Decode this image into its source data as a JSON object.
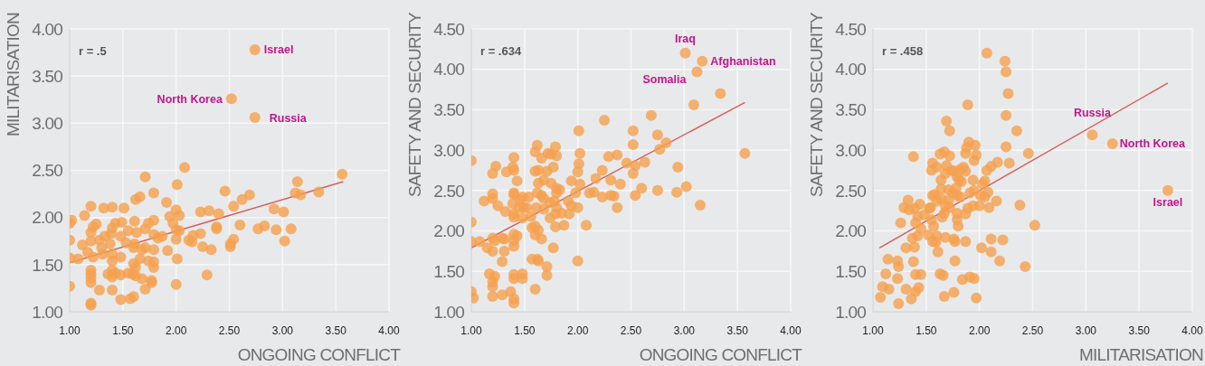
{
  "chart_data": [
    {
      "type": "scatter",
      "xlabel": "ONGOING CONFLICT",
      "ylabel": "MILITARISATION",
      "xlim": [
        1,
        4
      ],
      "xticks": [
        {
          "value": 1,
          "label": "1.00"
        },
        {
          "value": 1.5,
          "label": "1.50"
        },
        {
          "value": 2,
          "label": "2.00"
        },
        {
          "value": 2.5,
          "label": "2.50"
        },
        {
          "value": 3,
          "label": "3.00"
        },
        {
          "value": 3.5,
          "label": "3.50"
        },
        {
          "value": 4,
          "label": "4.00"
        }
      ],
      "ylim": [
        1,
        4
      ],
      "yticks": [
        {
          "value": 1,
          "label": "1.00"
        },
        {
          "value": 1.5,
          "label": "1.50"
        },
        {
          "value": 2,
          "label": "2.00"
        },
        {
          "value": 2.5,
          "label": "2.50"
        },
        {
          "value": 3,
          "label": "3.00"
        },
        {
          "value": 3.5,
          "label": "3.50"
        },
        {
          "value": 4,
          "label": "4.00"
        }
      ],
      "grid": true,
      "marker": "circle",
      "annotations": [
        "r = .5",
        {
          "text": "Israel",
          "x": 2.74,
          "y": 3.78
        },
        {
          "text": "North Korea",
          "x": 2.52,
          "y": 3.26
        },
        {
          "text": "Russia",
          "x": 2.74,
          "y": 3.06
        }
      ],
      "series": [
        {
          "color": "#f5a04e",
          "x": [
            2.74,
            2.52,
            2.74,
            2.08,
            3.56,
            1.71,
            2.01,
            3.14,
            2.46,
            2.69,
            2.62,
            3.12,
            3.17,
            3.34,
            1.79,
            1.66,
            1.62,
            1.91,
            2.54,
            2.92,
            3.01,
            2.23,
            2.31,
            2.4,
            2.0,
            2.03,
            1.94,
            1.97,
            1.51,
            1.4,
            1.32,
            1.2,
            1.14,
            1.02,
            1.0,
            1.25,
            1.22,
            1.43,
            1.49,
            1.61,
            1.79,
            1.74,
            1.71,
            1.4,
            1.2,
            2.6,
            2.77,
            2.83,
            2.94,
            3.08,
            2.38,
            2.38,
            2.0,
            2.03,
            2.23,
            2.16,
            2.12,
            2.15,
            2.54,
            2.51,
            2.51,
            2.25,
            2.33,
            3.02,
            2.0,
            1.87,
            1.83,
            1.79,
            1.63,
            1.55,
            1.48,
            1.39,
            1.33,
            1.28,
            1.0,
            1.12,
            1.2,
            1.3,
            1.38,
            1.53,
            1.61,
            1.6,
            1.68,
            1.71,
            1.79,
            1.92,
            1.17,
            1.31,
            1.22,
            1.4,
            1.48,
            1.66,
            1.74,
            1.79,
            2.01,
            1.0,
            1.08,
            1.4,
            1.6,
            1.62,
            1.79,
            1.2,
            1.2,
            1.4,
            1.36,
            1.43,
            1.48,
            1.55,
            1.59,
            1.62,
            1.4,
            1.2,
            1.2,
            1.68,
            1.77,
            1.77,
            2.29,
            2.0,
            1.0,
            1.28,
            1.4,
            1.71,
            1.48,
            1.57,
            1.6,
            1.2,
            1.2
          ],
          "values": [
            3.78,
            3.26,
            3.06,
            2.53,
            2.46,
            2.43,
            2.35,
            2.38,
            2.28,
            2.24,
            2.19,
            2.26,
            2.24,
            2.27,
            2.26,
            2.22,
            2.19,
            2.16,
            2.12,
            2.09,
            2.06,
            2.06,
            2.07,
            2.04,
            2.08,
            2.02,
            2.01,
            1.94,
            2.1,
            2.11,
            2.1,
            2.12,
            2.02,
            1.97,
            1.94,
            1.93,
            1.9,
            1.94,
            1.95,
            1.96,
            1.97,
            1.94,
            1.88,
            1.89,
            1.84,
            1.92,
            1.88,
            1.91,
            1.87,
            1.88,
            1.88,
            1.9,
            1.87,
            1.86,
            1.83,
            1.81,
            1.76,
            1.74,
            1.77,
            1.72,
            1.69,
            1.69,
            1.66,
            1.75,
            1.77,
            1.8,
            1.78,
            1.82,
            1.84,
            1.86,
            1.8,
            1.83,
            1.8,
            1.76,
            1.76,
            1.71,
            1.75,
            1.68,
            1.72,
            1.73,
            1.72,
            1.68,
            1.66,
            1.68,
            1.66,
            1.65,
            1.63,
            1.61,
            1.58,
            1.61,
            1.58,
            1.56,
            1.54,
            1.53,
            1.56,
            1.57,
            1.56,
            1.54,
            1.51,
            1.47,
            1.47,
            1.44,
            1.4,
            1.44,
            1.4,
            1.41,
            1.39,
            1.41,
            1.4,
            1.38,
            1.37,
            1.36,
            1.31,
            1.35,
            1.33,
            1.31,
            1.39,
            1.29,
            1.27,
            1.23,
            1.23,
            1.24,
            1.13,
            1.14,
            1.16,
            1.09,
            1.07
          ]
        },
        {
          "type": "line",
          "color": "#d4605c",
          "marker": "none",
          "x": [
            1.0,
            3.57
          ],
          "values": [
            1.52,
            2.38
          ]
        }
      ]
    },
    {
      "type": "scatter",
      "xlabel": "ONGOING CONFLICT",
      "ylabel": "SAFETY AND SECURITY",
      "xlim": [
        1,
        4
      ],
      "xticks": [
        {
          "value": 1,
          "label": "1.00"
        },
        {
          "value": 1.5,
          "label": "1.50"
        },
        {
          "value": 2,
          "label": "2.00"
        },
        {
          "value": 2.5,
          "label": "2.50"
        },
        {
          "value": 3,
          "label": "3.00"
        },
        {
          "value": 3.5,
          "label": "3.50"
        },
        {
          "value": 4,
          "label": "4.00"
        }
      ],
      "ylim": [
        1,
        4.5
      ],
      "yticks": [
        {
          "value": 1,
          "label": "1.00"
        },
        {
          "value": 1.5,
          "label": "1.50"
        },
        {
          "value": 2,
          "label": "2.00"
        },
        {
          "value": 2.5,
          "label": "2.50"
        },
        {
          "value": 3,
          "label": "3.00"
        },
        {
          "value": 3.5,
          "label": "3.50"
        },
        {
          "value": 4,
          "label": "4.00"
        },
        {
          "value": 4.5,
          "label": "4.50"
        }
      ],
      "grid": true,
      "marker": "circle",
      "annotations": [
        "r = .634",
        {
          "text": "Iraq",
          "x": 3.01,
          "y": 4.2
        },
        {
          "text": "Afghanistan",
          "x": 3.17,
          "y": 4.1
        },
        {
          "text": "Somalia",
          "x": 3.12,
          "y": 3.97
        }
      ],
      "series": [
        {
          "color": "#f5a04e",
          "x": [
            3.01,
            3.17,
            3.12,
            3.34,
            3.09,
            2.69,
            2.25,
            2.01,
            2.52,
            2.75,
            2.83,
            2.52,
            2.77,
            3.57,
            2.02,
            2.29,
            2.37,
            2.63,
            2.46,
            2.54,
            2.94,
            2.23,
            2.52,
            2.01,
            2.0,
            2.02,
            1.94,
            2.17,
            2.31,
            2.4,
            2.6,
            2.75,
            2.93,
            3.02,
            2.54,
            2.31,
            2.34,
            2.23,
            2.11,
            2.15,
            1.98,
            2.37,
            3.15,
            2.08,
            2.0,
            1.91,
            1.94,
            1.92,
            1.85,
            1.87,
            1.79,
            1.8,
            1.83,
            1.8,
            1.78,
            1.8,
            1.79,
            1.74,
            1.77,
            1.66,
            1.6,
            1.63,
            1.6,
            1.57,
            1.56,
            1.61,
            1.68,
            1.74,
            1.68,
            1.66,
            1.62,
            1.68,
            1.63,
            1.75,
            1.71,
            1.6,
            1.63,
            1.77,
            1.66,
            1.6,
            1.62,
            1.72,
            1.75,
            1.79,
            1.8,
            1.4,
            1.39,
            1.4,
            1.43,
            1.33,
            1.23,
            1.2,
            1.0,
            1.12,
            1.2,
            1.2,
            1.25,
            1.32,
            1.4,
            1.4,
            1.39,
            1.46,
            1.48,
            1.54,
            1.49,
            1.52,
            1.45,
            1.4,
            1.4,
            1.48,
            1.0,
            1.0,
            1.08,
            1.15,
            1.2,
            1.22,
            1.29,
            1.31,
            1.2,
            1.31,
            1.29,
            1.4,
            1.43,
            1.4,
            1.4,
            1.57,
            1.62,
            1.63,
            1.71,
            1.71,
            2.0,
            1.17,
            1.22,
            1.2,
            1.4,
            1.4,
            1.48,
            1.48,
            1.2,
            1.2,
            1.29,
            1.0,
            1.02,
            1.37,
            1.4,
            1.4,
            1.6
          ],
          "values": [
            4.2,
            4.1,
            3.97,
            3.7,
            3.56,
            3.43,
            3.37,
            3.24,
            3.24,
            3.19,
            3.09,
            3.07,
            3.01,
            2.96,
            2.96,
            2.92,
            2.94,
            2.85,
            2.84,
            2.81,
            2.79,
            2.75,
            2.71,
            2.83,
            2.73,
            2.58,
            2.62,
            2.65,
            2.63,
            2.58,
            2.53,
            2.5,
            2.48,
            2.55,
            2.44,
            2.44,
            2.43,
            2.42,
            2.47,
            2.48,
            2.47,
            2.29,
            2.32,
            2.07,
            2.29,
            2.37,
            2.31,
            2.21,
            2.22,
            2.07,
            2.05,
            2.53,
            2.51,
            2.47,
            2.37,
            2.29,
            2.21,
            2.16,
            1.79,
            1.9,
            2.06,
            2.01,
            1.95,
            2.04,
            2.18,
            2.29,
            2.27,
            2.35,
            2.4,
            2.44,
            2.47,
            2.63,
            2.59,
            2.59,
            2.74,
            2.74,
            2.75,
            2.79,
            2.9,
            2.98,
            3.06,
            2.96,
            2.95,
            3.04,
            2.93,
            2.91,
            2.79,
            2.75,
            2.62,
            2.73,
            2.8,
            2.71,
            2.87,
            2.37,
            2.46,
            2.4,
            2.31,
            2.24,
            2.47,
            2.45,
            2.34,
            2.38,
            2.42,
            2.42,
            2.29,
            2.29,
            2.29,
            2.21,
            2.17,
            2.16,
            2.11,
            1.87,
            1.87,
            1.79,
            1.91,
            1.88,
            1.91,
            1.9,
            1.75,
            1.75,
            1.62,
            1.96,
            1.94,
            1.88,
            1.81,
            1.65,
            1.65,
            1.63,
            1.56,
            1.45,
            1.63,
            1.47,
            1.44,
            1.37,
            1.46,
            1.41,
            1.47,
            1.41,
            1.31,
            1.19,
            1.21,
            1.25,
            1.17,
            1.25,
            1.16,
            1.11,
            1.28
          ]
        },
        {
          "type": "line",
          "color": "#d4605c",
          "marker": "none",
          "x": [
            1.0,
            3.57
          ],
          "values": [
            1.79,
            3.59
          ]
        }
      ]
    },
    {
      "type": "scatter",
      "xlabel": "MILITARISATION",
      "ylabel": "SAFETY AND SECURITY",
      "xlim": [
        1,
        4
      ],
      "xticks": [
        {
          "value": 1,
          "label": "1.00"
        },
        {
          "value": 1.5,
          "label": "1.50"
        },
        {
          "value": 2,
          "label": "2.00"
        },
        {
          "value": 2.5,
          "label": "2.50"
        },
        {
          "value": 3,
          "label": "3.00"
        },
        {
          "value": 3.5,
          "label": "3.50"
        },
        {
          "value": 4,
          "label": "4.00"
        }
      ],
      "ylim": [
        1,
        4.5
      ],
      "yticks": [
        {
          "value": 1,
          "label": "1.00"
        },
        {
          "value": 1.5,
          "label": "1.50"
        },
        {
          "value": 2,
          "label": "2.00"
        },
        {
          "value": 2.5,
          "label": "2.50"
        },
        {
          "value": 3,
          "label": "3.00"
        },
        {
          "value": 3.5,
          "label": "3.50"
        },
        {
          "value": 4,
          "label": "4.00"
        },
        {
          "value": 4.5,
          "label": "4.50"
        }
      ],
      "grid": true,
      "marker": "circle",
      "annotations": [
        "r = .458",
        {
          "text": "Russia",
          "x": 3.06,
          "y": 3.19
        },
        {
          "text": "North Korea",
          "x": 3.25,
          "y": 3.08
        },
        {
          "text": "Israel",
          "x": 3.77,
          "y": 2.5
        }
      ],
      "series": [
        {
          "color": "#f5a04e",
          "x": [
            2.07,
            2.24,
            2.25,
            2.27,
            1.89,
            2.25,
            1.69,
            1.72,
            2.35,
            3.06,
            3.25,
            3.77,
            2.25,
            2.46,
            1.38,
            1.9,
            1.96,
            1.88,
            1.87,
            1.95,
            1.97,
            1.67,
            1.63,
            1.72,
            2.28,
            2.17,
            2.11,
            2.07,
            1.56,
            1.6,
            1.55,
            1.69,
            1.74,
            1.68,
            1.76,
            1.85,
            1.82,
            1.87,
            1.64,
            1.79,
            1.81,
            1.83,
            1.94,
            2.05,
            2.03,
            1.64,
            1.71,
            1.75,
            1.78,
            1.79,
            1.82,
            1.91,
            1.95,
            2.01,
            2.08,
            2.05,
            2.16,
            1.56,
            1.58,
            1.6,
            1.64,
            1.71,
            1.68,
            1.72,
            1.79,
            1.89,
            1.94,
            2.0,
            2.09,
            2.38,
            1.87,
            1.8,
            1.79,
            1.65,
            1.67,
            1.54,
            1.53,
            1.44,
            1.33,
            1.29,
            1.34,
            1.39,
            1.42,
            1.48,
            1.55,
            1.57,
            1.4,
            1.26,
            1.45,
            1.42,
            1.52,
            1.6,
            1.37,
            1.56,
            1.59,
            1.61,
            1.68,
            1.76,
            1.77,
            1.87,
            2.52,
            1.31,
            1.39,
            1.77,
            2.02,
            2.11,
            2.22,
            2.11,
            2.19,
            2.43,
            1.14,
            1.23,
            1.24,
            1.38,
            1.12,
            1.23,
            1.4,
            1.45,
            1.63,
            1.66,
            1.09,
            1.15,
            1.07,
            1.24,
            1.31,
            1.36,
            1.4,
            1.43,
            1.67,
            1.76,
            1.84,
            1.91,
            1.95,
            1.97
          ],
          "values": [
            4.2,
            4.1,
            3.97,
            3.7,
            3.56,
            3.43,
            3.36,
            3.24,
            3.24,
            3.19,
            3.08,
            2.5,
            3.04,
            2.96,
            2.92,
            3.1,
            3.06,
            3.03,
            2.96,
            2.87,
            2.94,
            2.98,
            2.95,
            2.93,
            2.84,
            2.85,
            2.8,
            2.75,
            2.84,
            2.79,
            2.75,
            2.81,
            2.75,
            2.71,
            2.74,
            2.79,
            2.76,
            2.74,
            2.63,
            2.67,
            2.63,
            2.61,
            2.63,
            2.62,
            2.58,
            2.52,
            2.51,
            2.47,
            2.53,
            2.44,
            2.42,
            2.47,
            2.5,
            2.44,
            2.48,
            2.42,
            2.37,
            2.44,
            2.45,
            2.37,
            2.4,
            2.38,
            2.31,
            2.29,
            2.22,
            2.28,
            2.31,
            2.31,
            2.29,
            2.32,
            2.21,
            2.06,
            2.14,
            2.17,
            2.22,
            2.29,
            2.28,
            2.33,
            2.38,
            2.29,
            2.26,
            2.28,
            2.18,
            2.2,
            2.14,
            2.06,
            2.1,
            2.1,
            2.03,
            1.94,
            1.95,
            1.94,
            1.91,
            1.87,
            1.86,
            1.74,
            1.92,
            1.9,
            1.87,
            1.87,
            2.07,
            1.79,
            1.8,
            1.63,
            1.79,
            1.9,
            1.89,
            1.74,
            1.63,
            1.56,
            1.65,
            1.63,
            1.56,
            1.62,
            1.47,
            1.41,
            1.46,
            1.46,
            1.47,
            1.45,
            1.31,
            1.28,
            1.18,
            1.1,
            1.28,
            1.16,
            1.25,
            1.3,
            1.19,
            1.24,
            1.4,
            1.43,
            1.41,
            1.17
          ]
        },
        {
          "type": "line",
          "color": "#d4605c",
          "marker": "none",
          "x": [
            1.06,
            3.77
          ],
          "values": [
            1.79,
            3.83
          ]
        }
      ]
    }
  ]
}
